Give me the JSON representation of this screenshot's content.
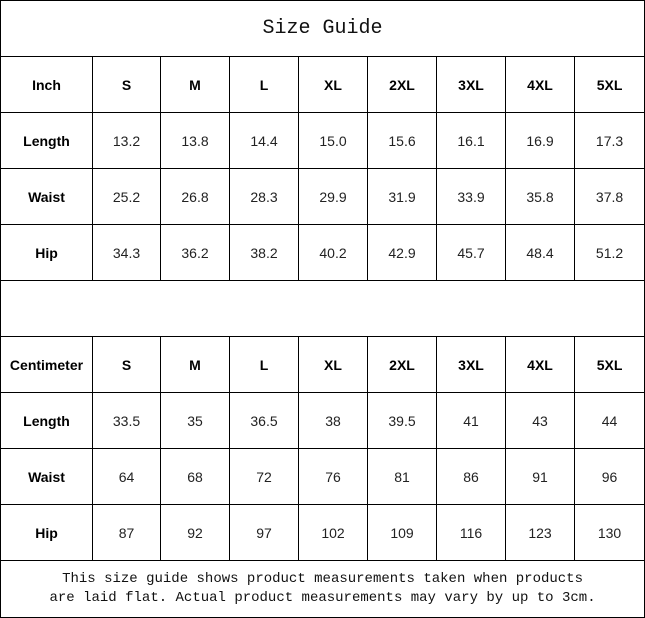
{
  "title": "Size Guide",
  "sizes": [
    "S",
    "M",
    "L",
    "XL",
    "2XL",
    "3XL",
    "4XL",
    "5XL"
  ],
  "inch": {
    "unit_label": "Inch",
    "rows": [
      {
        "label": "Length",
        "values": [
          "13.2",
          "13.8",
          "14.4",
          "15.0",
          "15.6",
          "16.1",
          "16.9",
          "17.3"
        ]
      },
      {
        "label": "Waist",
        "values": [
          "25.2",
          "26.8",
          "28.3",
          "29.9",
          "31.9",
          "33.9",
          "35.8",
          "37.8"
        ]
      },
      {
        "label": "Hip",
        "values": [
          "34.3",
          "36.2",
          "38.2",
          "40.2",
          "42.9",
          "45.7",
          "48.4",
          "51.2"
        ]
      }
    ]
  },
  "centimeter": {
    "unit_label": "Centimeter",
    "rows": [
      {
        "label": "Length",
        "values": [
          "33.5",
          "35",
          "36.5",
          "38",
          "39.5",
          "41",
          "43",
          "44"
        ]
      },
      {
        "label": "Waist",
        "values": [
          "64",
          "68",
          "72",
          "76",
          "81",
          "86",
          "91",
          "96"
        ]
      },
      {
        "label": "Hip",
        "values": [
          "87",
          "92",
          "97",
          "102",
          "109",
          "116",
          "123",
          "130"
        ]
      }
    ]
  },
  "note": {
    "line1": "This size guide shows product measurements taken when products",
    "line2": "are laid flat. Actual product measurements may vary by up to 3cm."
  }
}
